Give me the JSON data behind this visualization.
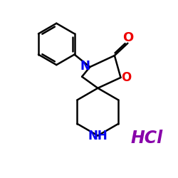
{
  "bg_color": "#ffffff",
  "bond_color": "#000000",
  "n_color": "#0000ee",
  "o_color": "#ee0000",
  "hcl_color": "#8800aa",
  "hcl_text": "HCl",
  "n_label": "N",
  "o_label": "O",
  "nh_label": "NH",
  "figsize": [
    2.5,
    2.5
  ],
  "dpi": 100,
  "lw": 1.8
}
